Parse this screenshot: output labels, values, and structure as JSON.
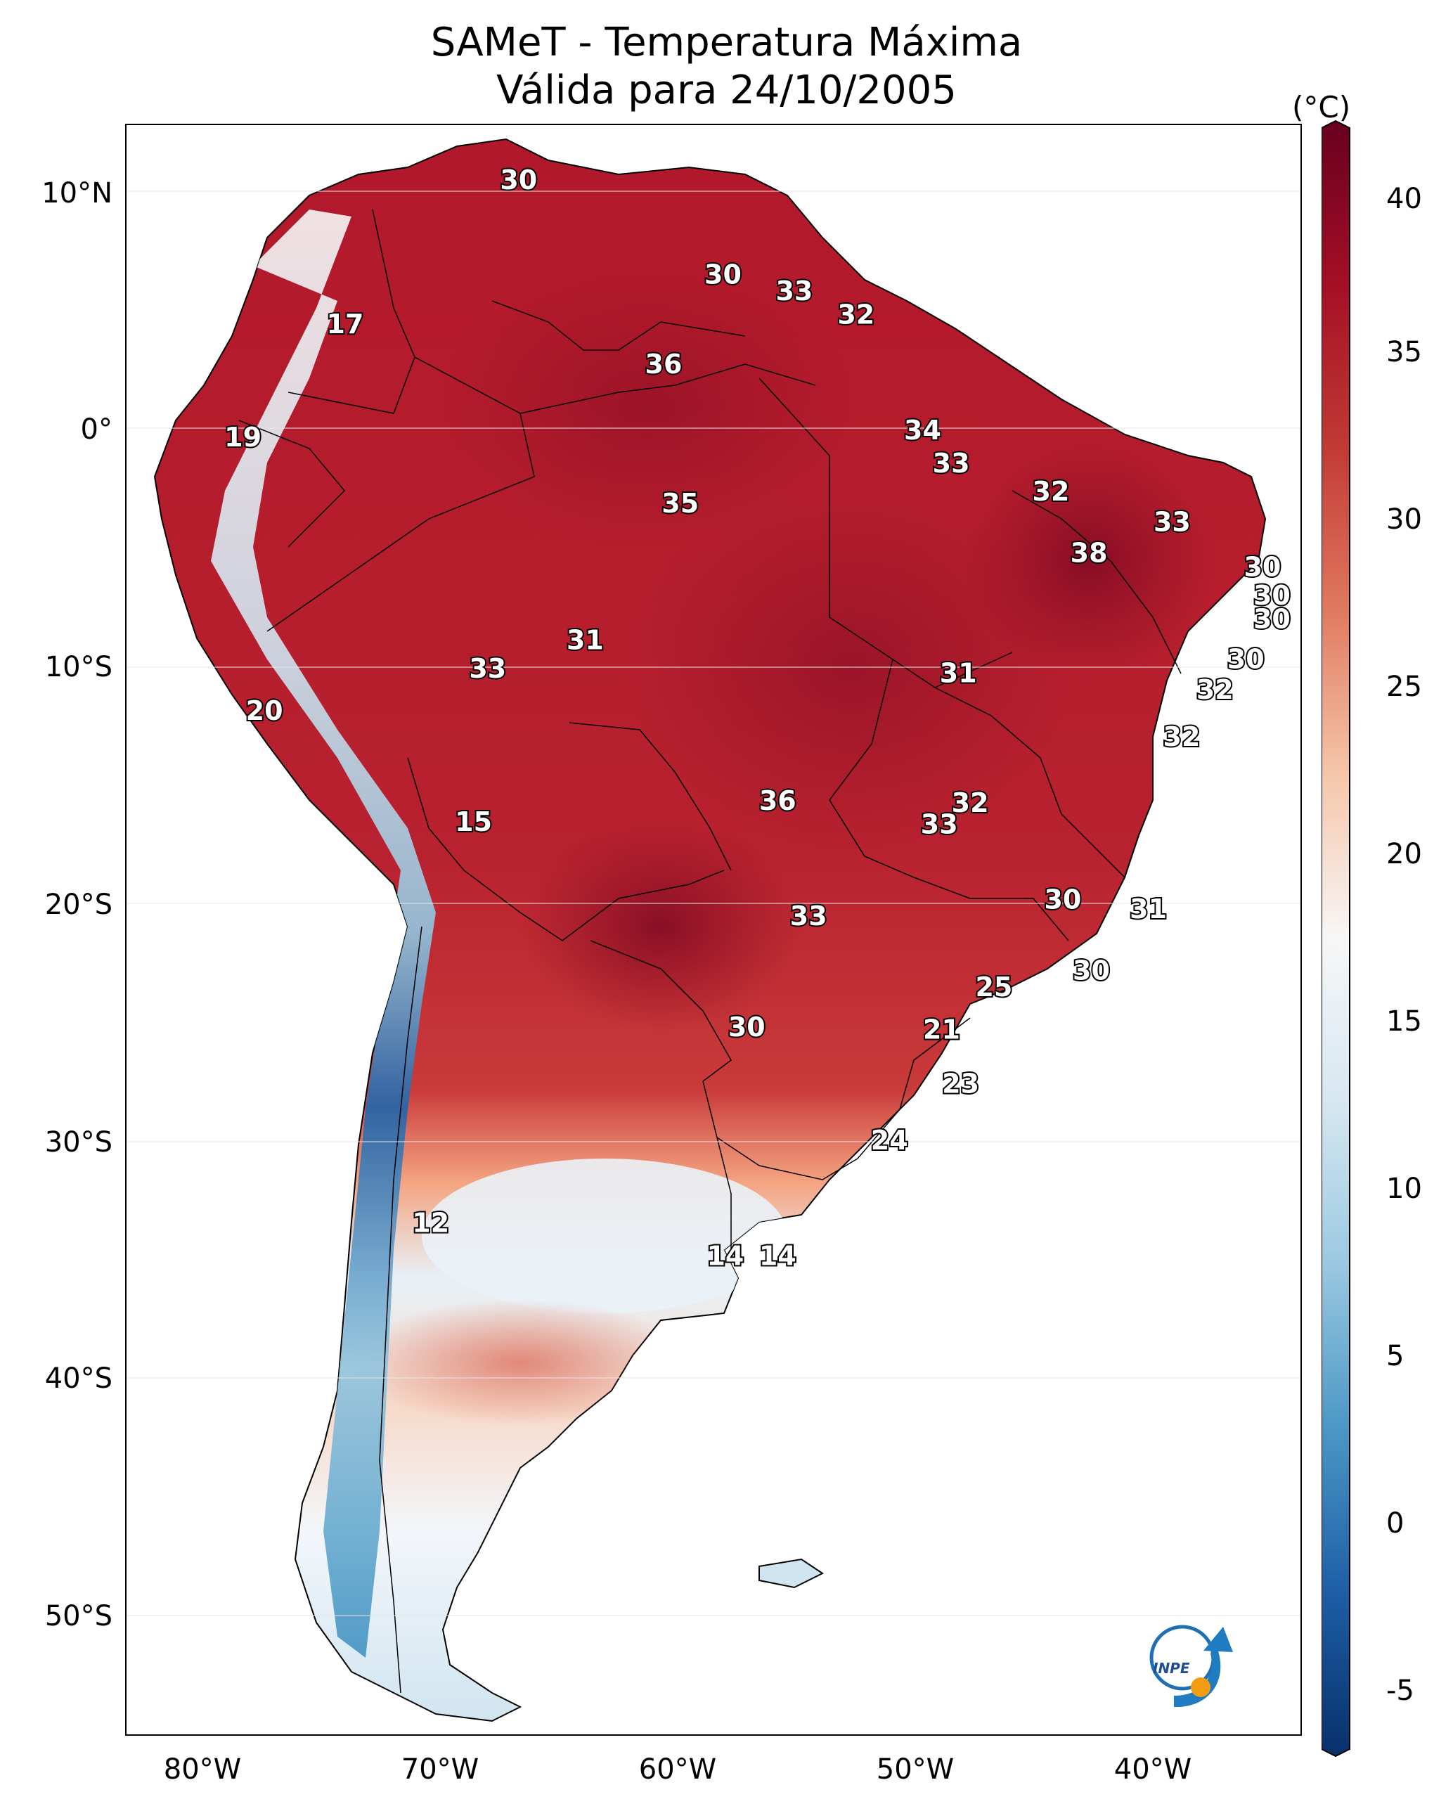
{
  "title": {
    "line1": "SAMeT - Temperatura Máxima",
    "line2": "Válida para 24/10/2005"
  },
  "colorbar": {
    "unit": "(°C)",
    "ticks": [
      "40",
      "35",
      "30",
      "25",
      "20",
      "15",
      "10",
      "5",
      "0",
      "-5"
    ],
    "min": -5,
    "max": 40,
    "colors": [
      "#08306b",
      "#2166ac",
      "#4393c3",
      "#92c5de",
      "#d1e5f0",
      "#f7f7f7",
      "#fddbc7",
      "#f4a582",
      "#d6604d",
      "#b2182b",
      "#67001f"
    ]
  },
  "axes": {
    "lat_labels": [
      "10°N",
      "0°",
      "10°S",
      "20°S",
      "30°S",
      "40°S",
      "50°S"
    ],
    "lon_labels": [
      "80°W",
      "70°W",
      "60°W",
      "50°W",
      "40°W"
    ]
  },
  "isotherm_labels": [
    {
      "text": "30",
      "lon": -66.5,
      "lat": 10.6
    },
    {
      "text": "30",
      "lon": -57.9,
      "lat": 6.6
    },
    {
      "text": "33",
      "lon": -54.9,
      "lat": 5.9
    },
    {
      "text": "32",
      "lon": -52.3,
      "lat": 4.9
    },
    {
      "text": "17",
      "lon": -73.8,
      "lat": 4.5
    },
    {
      "text": "36",
      "lon": -60.4,
      "lat": 2.8
    },
    {
      "text": "34",
      "lon": -49.5,
      "lat": 0.0
    },
    {
      "text": "19",
      "lon": -78.1,
      "lat": -0.3
    },
    {
      "text": "33",
      "lon": -48.3,
      "lat": -1.4
    },
    {
      "text": "32",
      "lon": -44.1,
      "lat": -2.6
    },
    {
      "text": "35",
      "lon": -59.7,
      "lat": -3.1
    },
    {
      "text": "33",
      "lon": -39.0,
      "lat": -3.9
    },
    {
      "text": "38",
      "lon": -42.5,
      "lat": -5.2
    },
    {
      "text": "30",
      "lon": -35.2,
      "lat": -5.8
    },
    {
      "text": "30",
      "lon": -34.8,
      "lat": -7.0
    },
    {
      "text": "30",
      "lon": -34.8,
      "lat": -8.0
    },
    {
      "text": "31",
      "lon": -63.7,
      "lat": -8.9
    },
    {
      "text": "33",
      "lon": -67.8,
      "lat": -10.1
    },
    {
      "text": "31",
      "lon": -48.0,
      "lat": -10.3
    },
    {
      "text": "30",
      "lon": -35.9,
      "lat": -9.7
    },
    {
      "text": "32",
      "lon": -37.2,
      "lat": -11.0
    },
    {
      "text": "20",
      "lon": -77.2,
      "lat": -11.9
    },
    {
      "text": "32",
      "lon": -38.6,
      "lat": -13.0
    },
    {
      "text": "36",
      "lon": -55.6,
      "lat": -15.7
    },
    {
      "text": "32",
      "lon": -47.5,
      "lat": -15.8
    },
    {
      "text": "15",
      "lon": -68.4,
      "lat": -16.6
    },
    {
      "text": "33",
      "lon": -48.8,
      "lat": -16.7
    },
    {
      "text": "30",
      "lon": -43.6,
      "lat": -19.9
    },
    {
      "text": "31",
      "lon": -40.0,
      "lat": -20.3
    },
    {
      "text": "33",
      "lon": -54.3,
      "lat": -20.6
    },
    {
      "text": "30",
      "lon": -42.4,
      "lat": -22.9
    },
    {
      "text": "25",
      "lon": -46.5,
      "lat": -23.6
    },
    {
      "text": "30",
      "lon": -56.9,
      "lat": -25.3
    },
    {
      "text": "21",
      "lon": -48.7,
      "lat": -25.4
    },
    {
      "text": "23",
      "lon": -47.9,
      "lat": -27.7
    },
    {
      "text": "24",
      "lon": -50.9,
      "lat": -30.1
    },
    {
      "text": "12",
      "lon": -70.2,
      "lat": -33.6
    },
    {
      "text": "14",
      "lon": -57.8,
      "lat": -35.0
    },
    {
      "text": "14",
      "lon": -55.6,
      "lat": -35.0
    }
  ],
  "logo": {
    "text": "INPE"
  }
}
